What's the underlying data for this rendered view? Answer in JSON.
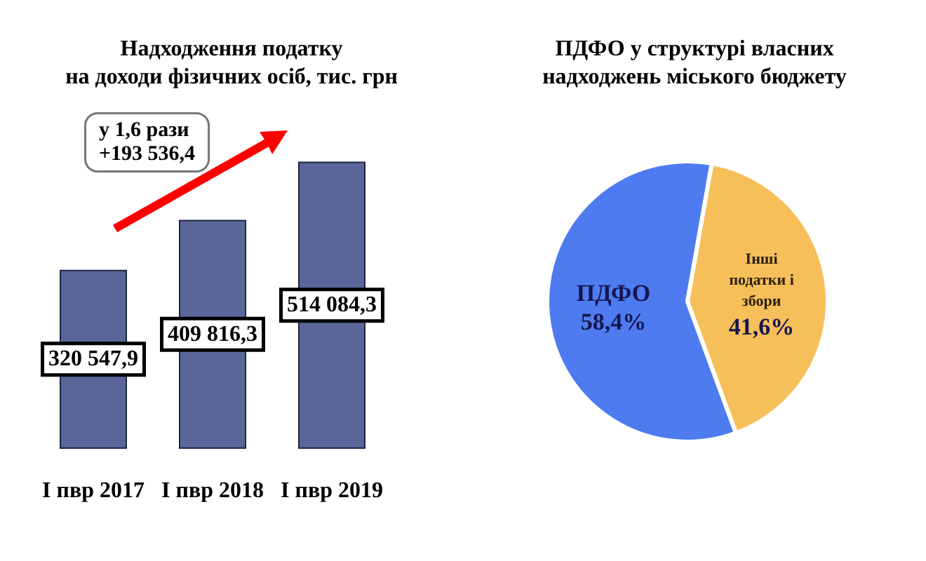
{
  "chart_data": [
    {
      "type": "bar",
      "title": "Надходження податку\nна доходи фізичних осіб, тис. грн",
      "categories": [
        "I пвр 2017",
        "I пвр 2018",
        "I пвр 2019"
      ],
      "values": [
        320547.9,
        409816.3,
        514084.3
      ],
      "value_labels": [
        "320 547,9",
        "409 816,3",
        "514 084,3"
      ],
      "color": "#5a6699",
      "tick_labels": "x",
      "annotations": [
        "у 1,6 рази\n+193 536,4"
      ]
    },
    {
      "type": "pie",
      "title": "ПДФО у структурі власних\nнадходжень міського бюджету",
      "categories": [
        "ПДФО",
        "Інші податки і збори"
      ],
      "values": [
        58.4,
        41.6
      ],
      "value_labels": [
        "58,4%",
        "41,6%"
      ],
      "colors": [
        "#4e7bf0",
        "#f7bf5a"
      ]
    }
  ]
}
